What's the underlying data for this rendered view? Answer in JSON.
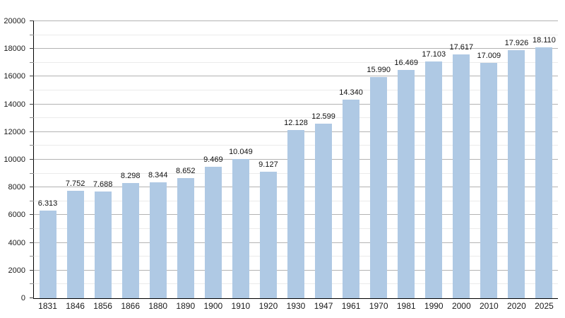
{
  "chart_data": {
    "type": "bar",
    "title": "",
    "xlabel": "",
    "ylabel": "",
    "categories": [
      "1831",
      "1846",
      "1856",
      "1866",
      "1880",
      "1890",
      "1900",
      "1910",
      "1920",
      "1930",
      "1947",
      "1961",
      "1970",
      "1981",
      "1990",
      "2000",
      "2010",
      "2020",
      "2025"
    ],
    "values": [
      6313,
      7752,
      7688,
      8298,
      8344,
      8652,
      9469,
      10049,
      9127,
      12128,
      12599,
      14340,
      15990,
      16469,
      17103,
      17617,
      17009,
      17926,
      18110
    ],
    "value_labels": [
      "6.313",
      "7.752",
      "7.688",
      "8.298",
      "8.344",
      "8.652",
      "9.469",
      "10.049",
      "9.127",
      "12.128",
      "12.599",
      "14.340",
      "15.990",
      "16.469",
      "17.103",
      "17.617",
      "17.009",
      "17.926",
      "18.110"
    ],
    "ylim": [
      0,
      20000
    ],
    "yticks": [
      "0",
      "2000",
      "4000",
      "6000",
      "8000",
      "10000",
      "12000",
      "14000",
      "16000",
      "18000",
      "20000"
    ],
    "ytick_interval": 2000,
    "minor_tick_interval": 1000,
    "grid": true,
    "legend_position": "none"
  },
  "colors": {
    "bar": "#afc9e4",
    "grid_major": "#b3b3b3",
    "grid_minor": "#ebebeb",
    "tick_major": "#404040",
    "tick_minor": "#8c8c8c",
    "axis": "#000000",
    "text": "#1a1a1a"
  }
}
